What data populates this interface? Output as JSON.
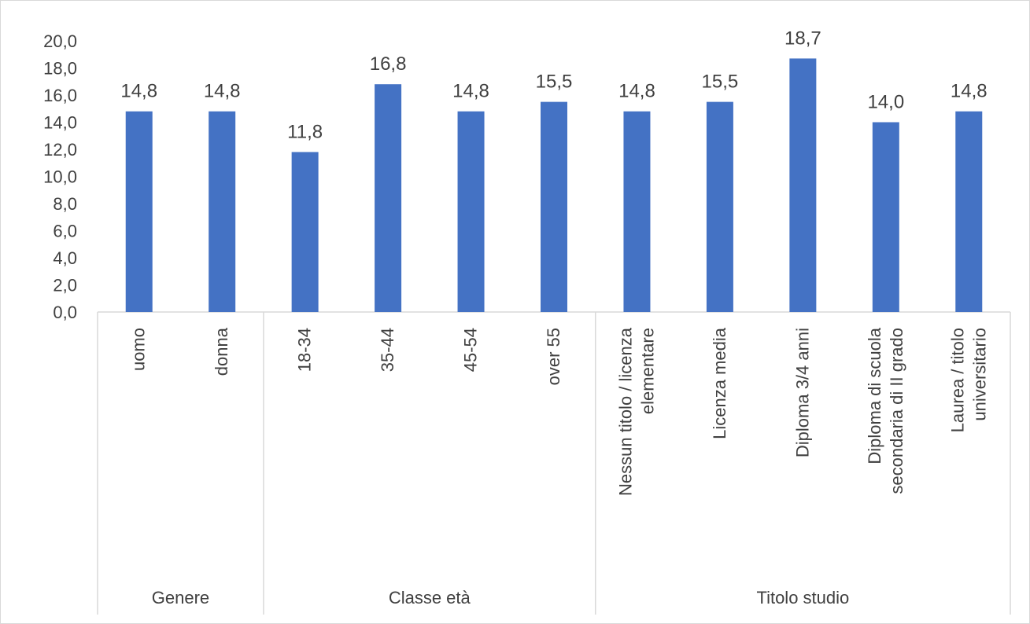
{
  "chart_data": {
    "type": "bar",
    "title": "",
    "xlabel": "",
    "ylabel": "",
    "ylim": [
      0,
      20
    ],
    "y_ticks": [
      "0,0",
      "2,0",
      "4,0",
      "6,0",
      "8,0",
      "10,0",
      "12,0",
      "14,0",
      "16,0",
      "18,0",
      "20,0"
    ],
    "grid": false,
    "legend": "none",
    "bar_color": "#4472C4",
    "groups": [
      {
        "label": "Genere",
        "count": 2
      },
      {
        "label": "Classe età",
        "count": 4
      },
      {
        "label": "Titolo studio",
        "count": 5
      }
    ],
    "categories": [
      [
        "uomo"
      ],
      [
        "donna"
      ],
      [
        "18-34"
      ],
      [
        "35-44"
      ],
      [
        "45-54"
      ],
      [
        "over 55"
      ],
      [
        "Nessun titolo / licenza",
        "elementare"
      ],
      [
        "Licenza media"
      ],
      [
        "Diploma 3/4 anni"
      ],
      [
        "Diploma di scuola",
        "secondaria di II grado"
      ],
      [
        "Laurea / titolo",
        "universitario"
      ]
    ],
    "values": [
      14.8,
      14.8,
      11.8,
      16.8,
      14.8,
      15.5,
      14.8,
      15.5,
      18.7,
      14.0,
      14.8
    ],
    "data_labels": [
      "14,8",
      "14,8",
      "11,8",
      "16,8",
      "14,8",
      "15,5",
      "14,8",
      "15,5",
      "18,7",
      "14,0",
      "14,8"
    ]
  }
}
